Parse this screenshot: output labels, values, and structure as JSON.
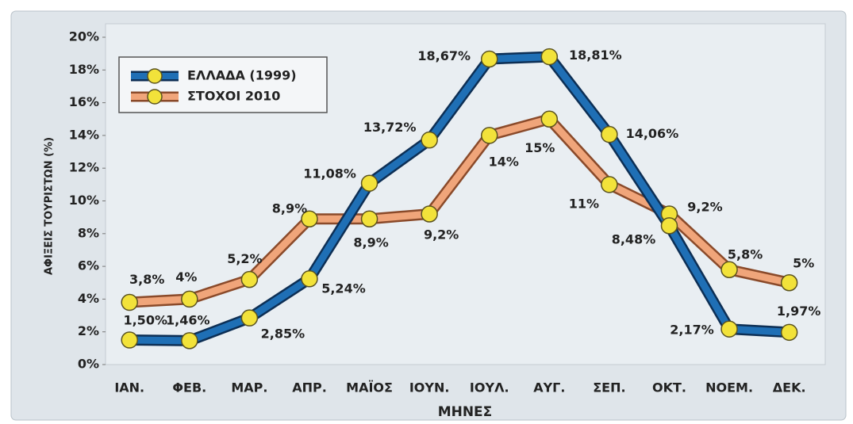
{
  "chart_data": {
    "type": "line",
    "categories": [
      "ΙΑΝ.",
      "ΦΕΒ.",
      "ΜΑΡ.",
      "ΑΠΡ.",
      "ΜΑΪΟΣ",
      "ΙΟΥΝ.",
      "ΙΟΥΛ.",
      "ΑΥΓ.",
      "ΣΕΠ.",
      "ΟΚΤ.",
      "ΝΟΕΜ.",
      "ΔΕΚ."
    ],
    "series": [
      {
        "name": "ΕΛΛΑΔΑ (1999)",
        "color": "#1f6fb5",
        "values": [
          1.5,
          1.46,
          2.85,
          5.24,
          11.08,
          13.72,
          18.67,
          18.81,
          14.06,
          8.48,
          2.17,
          1.97
        ],
        "value_labels": [
          "1,50%",
          "1,46%",
          "2,85%",
          "5,24%",
          "11,08%",
          "13,72%",
          "18,67%",
          "18,81%",
          "14,06%",
          "8,48%",
          "2,17%",
          "1,97%"
        ]
      },
      {
        "name": "ΣΤΟΧΟΙ 2010",
        "color": "#f0a57a",
        "values": [
          3.8,
          4,
          5.2,
          8.9,
          8.9,
          9.2,
          14,
          15,
          11,
          9.2,
          5.8,
          5
        ],
        "value_labels": [
          "3,8%",
          "4%",
          "5,2%",
          "8,9%",
          "8,9%",
          "9,2%",
          "14%",
          "15%",
          "11%",
          "9,2%",
          "5,8%",
          "5%"
        ]
      }
    ],
    "xlabel": "ΜΗΝΕΣ",
    "ylabel": "ΑΦΙΞΕΙΣ ΤΟΥΡΙΣΤΩΝ (%)",
    "ylim": [
      0,
      20
    ],
    "yticks": [
      {
        "value": 0,
        "label": "0%"
      },
      {
        "value": 2,
        "label": "2%"
      },
      {
        "value": 4,
        "label": "4%"
      },
      {
        "value": 6,
        "label": "6%"
      },
      {
        "value": 8,
        "label": "8%"
      },
      {
        "value": 10,
        "label": "10%"
      },
      {
        "value": 12,
        "label": "12%"
      },
      {
        "value": 14,
        "label": "14%"
      },
      {
        "value": 16,
        "label": "16%"
      },
      {
        "value": 18,
        "label": "18%"
      },
      {
        "value": 20,
        "label": "20%"
      }
    ],
    "legend": "upper left",
    "marker_color": "#f2e23a"
  }
}
